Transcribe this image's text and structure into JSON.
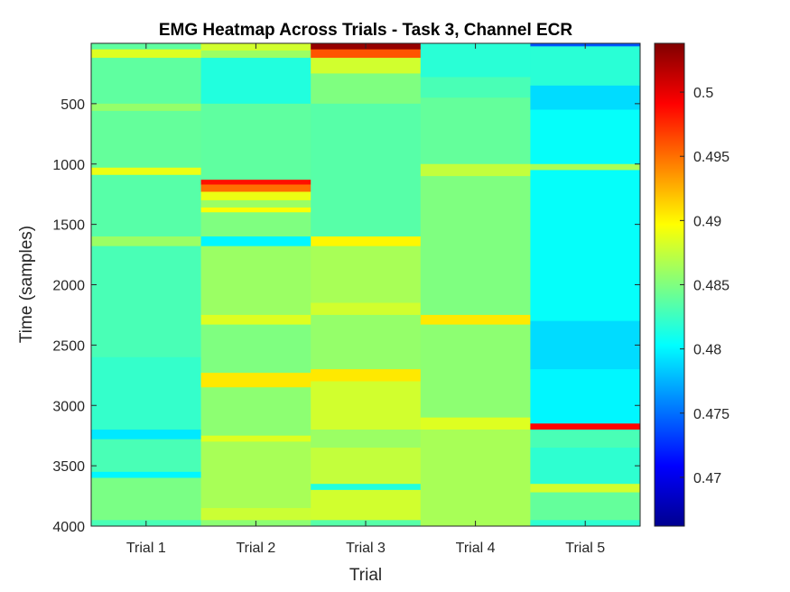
{
  "chart_data": {
    "type": "heatmap",
    "title": "EMG Heatmap Across Trials - Task 3, Channel ECR",
    "xlabel": "Trial",
    "ylabel": "Time (samples)",
    "categories": [
      "Trial 1",
      "Trial 2",
      "Trial 3",
      "Trial 4",
      "Trial 5"
    ],
    "y_range": [
      0,
      4000
    ],
    "y_ticks": [
      500,
      1000,
      1500,
      2000,
      2500,
      3000,
      3500,
      4000
    ],
    "y_direction": "reversed",
    "colormap": "jet",
    "color_range": [
      0.4662,
      0.5038
    ],
    "colorbar_ticks": [
      0.47,
      0.475,
      0.48,
      0.485,
      0.49,
      0.495,
      0.5
    ],
    "grid": false,
    "bands": [
      [
        {
          "from": 0,
          "to": 50,
          "value": 0.4838
        },
        {
          "from": 50,
          "to": 120,
          "value": 0.4885
        },
        {
          "from": 120,
          "to": 500,
          "value": 0.4838
        },
        {
          "from": 500,
          "to": 560,
          "value": 0.4858
        },
        {
          "from": 560,
          "to": 1030,
          "value": 0.484
        },
        {
          "from": 1030,
          "to": 1090,
          "value": 0.489
        },
        {
          "from": 1090,
          "to": 1600,
          "value": 0.4835
        },
        {
          "from": 1600,
          "to": 1680,
          "value": 0.486
        },
        {
          "from": 1680,
          "to": 2600,
          "value": 0.483
        },
        {
          "from": 2600,
          "to": 3200,
          "value": 0.4822
        },
        {
          "from": 3200,
          "to": 3280,
          "value": 0.4795
        },
        {
          "from": 3280,
          "to": 3550,
          "value": 0.483
        },
        {
          "from": 3550,
          "to": 3600,
          "value": 0.48
        },
        {
          "from": 3600,
          "to": 3950,
          "value": 0.4848
        },
        {
          "from": 3950,
          "to": 4000,
          "value": 0.483
        }
      ],
      [
        {
          "from": 0,
          "to": 60,
          "value": 0.488
        },
        {
          "from": 60,
          "to": 120,
          "value": 0.486
        },
        {
          "from": 120,
          "to": 500,
          "value": 0.4815
        },
        {
          "from": 500,
          "to": 1130,
          "value": 0.4838
        },
        {
          "from": 1130,
          "to": 1170,
          "value": 0.4985
        },
        {
          "from": 1170,
          "to": 1230,
          "value": 0.495
        },
        {
          "from": 1230,
          "to": 1300,
          "value": 0.489
        },
        {
          "from": 1300,
          "to": 1360,
          "value": 0.486
        },
        {
          "from": 1360,
          "to": 1400,
          "value": 0.4895
        },
        {
          "from": 1400,
          "to": 1600,
          "value": 0.485
        },
        {
          "from": 1600,
          "to": 1680,
          "value": 0.48
        },
        {
          "from": 1680,
          "to": 2250,
          "value": 0.486
        },
        {
          "from": 2250,
          "to": 2330,
          "value": 0.4885
        },
        {
          "from": 2330,
          "to": 2730,
          "value": 0.485
        },
        {
          "from": 2730,
          "to": 2850,
          "value": 0.4905
        },
        {
          "from": 2850,
          "to": 3250,
          "value": 0.4855
        },
        {
          "from": 3250,
          "to": 3300,
          "value": 0.4885
        },
        {
          "from": 3300,
          "to": 3850,
          "value": 0.4865
        },
        {
          "from": 3850,
          "to": 3950,
          "value": 0.4878
        },
        {
          "from": 3950,
          "to": 4000,
          "value": 0.4855
        }
      ],
      [
        {
          "from": 0,
          "to": 50,
          "value": 0.503
        },
        {
          "from": 50,
          "to": 120,
          "value": 0.496
        },
        {
          "from": 120,
          "to": 250,
          "value": 0.488
        },
        {
          "from": 250,
          "to": 500,
          "value": 0.485
        },
        {
          "from": 500,
          "to": 1600,
          "value": 0.4835
        },
        {
          "from": 1600,
          "to": 1680,
          "value": 0.49
        },
        {
          "from": 1680,
          "to": 2150,
          "value": 0.4865
        },
        {
          "from": 2150,
          "to": 2250,
          "value": 0.488
        },
        {
          "from": 2250,
          "to": 2700,
          "value": 0.4858
        },
        {
          "from": 2700,
          "to": 2800,
          "value": 0.4905
        },
        {
          "from": 2800,
          "to": 3200,
          "value": 0.488
        },
        {
          "from": 3200,
          "to": 3350,
          "value": 0.486
        },
        {
          "from": 3350,
          "to": 3650,
          "value": 0.4875
        },
        {
          "from": 3650,
          "to": 3700,
          "value": 0.4815
        },
        {
          "from": 3700,
          "to": 3950,
          "value": 0.488
        },
        {
          "from": 3950,
          "to": 4000,
          "value": 0.4835
        }
      ],
      [
        {
          "from": 0,
          "to": 280,
          "value": 0.4818
        },
        {
          "from": 280,
          "to": 450,
          "value": 0.483
        },
        {
          "from": 450,
          "to": 1000,
          "value": 0.484
        },
        {
          "from": 1000,
          "to": 1100,
          "value": 0.4875
        },
        {
          "from": 1100,
          "to": 2250,
          "value": 0.485
        },
        {
          "from": 2250,
          "to": 2330,
          "value": 0.4905
        },
        {
          "from": 2330,
          "to": 3100,
          "value": 0.4855
        },
        {
          "from": 3100,
          "to": 3200,
          "value": 0.4885
        },
        {
          "from": 3200,
          "to": 4000,
          "value": 0.4865
        }
      ],
      [
        {
          "from": 0,
          "to": 25,
          "value": 0.474
        },
        {
          "from": 25,
          "to": 350,
          "value": 0.4818
        },
        {
          "from": 350,
          "to": 550,
          "value": 0.479
        },
        {
          "from": 550,
          "to": 1000,
          "value": 0.4805
        },
        {
          "from": 1000,
          "to": 1050,
          "value": 0.4865
        },
        {
          "from": 1050,
          "to": 2300,
          "value": 0.4805
        },
        {
          "from": 2300,
          "to": 2700,
          "value": 0.479
        },
        {
          "from": 2700,
          "to": 3150,
          "value": 0.48
        },
        {
          "from": 3150,
          "to": 3200,
          "value": 0.499
        },
        {
          "from": 3200,
          "to": 3350,
          "value": 0.483
        },
        {
          "from": 3350,
          "to": 3650,
          "value": 0.482
        },
        {
          "from": 3650,
          "to": 3720,
          "value": 0.488
        },
        {
          "from": 3720,
          "to": 3950,
          "value": 0.484
        },
        {
          "from": 3950,
          "to": 4000,
          "value": 0.482
        }
      ]
    ]
  }
}
